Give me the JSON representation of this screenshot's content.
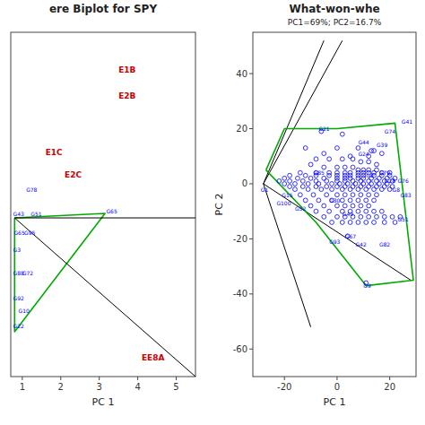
{
  "chart_data": [
    {
      "type": "biplot",
      "title": "ere Biplot for SPY",
      "xlabel": "PC 1",
      "xlim": [
        0.7,
        5.5
      ],
      "ylim": [
        -1.6,
        3.0
      ],
      "xticks": [
        1,
        2,
        3,
        4,
        5
      ],
      "tick_labels": "x",
      "series": [
        {
          "type": "line",
          "color": "#00aa00",
          "x": [
            0.8,
            3.15,
            0.8,
            0.8
          ],
          "values": [
            0.52,
            0.58,
            -1.0,
            0.52
          ]
        },
        {
          "type": "line",
          "color": "black",
          "x": [
            0.8,
            5.5
          ],
          "values": [
            0.52,
            0.52
          ]
        },
        {
          "type": "line",
          "color": "black",
          "x": [
            0.8,
            5.5
          ],
          "values": [
            0.52,
            -1.6
          ]
        }
      ],
      "annotations": [
        {
          "text": "E1B",
          "x": 3.5,
          "y": 2.5,
          "color": "#cc0000"
        },
        {
          "text": "E2B",
          "x": 3.5,
          "y": 2.15,
          "color": "#cc0000"
        },
        {
          "text": "E1C",
          "x": 1.6,
          "y": 1.4,
          "color": "#cc0000"
        },
        {
          "text": "E2C",
          "x": 2.1,
          "y": 1.1,
          "color": "#cc0000"
        },
        {
          "text": "EE8A",
          "x": 4.1,
          "y": -1.35,
          "color": "#cc0000"
        },
        {
          "text": "G65",
          "x": 3.18,
          "y": 0.61,
          "color": "blue"
        },
        {
          "text": "G78",
          "x": 1.1,
          "y": 0.9,
          "color": "blue"
        },
        {
          "text": "G43",
          "x": 0.76,
          "y": 0.58,
          "color": "blue"
        },
        {
          "text": "G51",
          "x": 1.22,
          "y": 0.58,
          "color": "blue"
        },
        {
          "text": "G65",
          "x": 0.78,
          "y": 0.32,
          "color": "blue"
        },
        {
          "text": "G95",
          "x": 1.05,
          "y": 0.32,
          "color": "blue"
        },
        {
          "text": "G3",
          "x": 0.76,
          "y": 0.1,
          "color": "blue"
        },
        {
          "text": "G72",
          "x": 1.0,
          "y": -0.22,
          "color": "blue"
        },
        {
          "text": "G88",
          "x": 0.76,
          "y": -0.22,
          "color": "blue"
        },
        {
          "text": "G92",
          "x": 0.76,
          "y": -0.55,
          "color": "blue"
        },
        {
          "text": "G10",
          "x": 0.9,
          "y": -0.72,
          "color": "blue"
        },
        {
          "text": "G22",
          "x": 0.76,
          "y": -0.92,
          "color": "blue"
        }
      ]
    },
    {
      "type": "biplot",
      "title": "What-won-whe",
      "subtitle": "PC1=69%; PC2=16.7%",
      "xlabel": "PC 1",
      "ylabel": "PC 2",
      "xlim": [
        -32,
        30
      ],
      "ylim": [
        -70,
        55
      ],
      "xticks": [
        -20,
        0,
        20
      ],
      "yticks": [
        -60,
        -40,
        -20,
        0,
        20,
        40
      ],
      "series": [
        {
          "type": "line",
          "color": "black",
          "x": [
            -28,
            -5
          ],
          "values": [
            0,
            52
          ]
        },
        {
          "type": "line",
          "color": "black",
          "x": [
            -28,
            2
          ],
          "values": [
            0,
            52
          ]
        },
        {
          "type": "line",
          "color": "black",
          "x": [
            -28,
            28
          ],
          "values": [
            0,
            -35
          ]
        },
        {
          "type": "line",
          "color": "black",
          "x": [
            -28,
            -10
          ],
          "values": [
            0,
            -52
          ]
        },
        {
          "type": "line",
          "color": "#00aa00",
          "x": [
            -27,
            -20,
            0,
            22,
            29,
            11,
            -8,
            -27
          ],
          "values": [
            5,
            20,
            20,
            22,
            -35,
            -37,
            -14,
            5
          ]
        },
        {
          "type": "scatter",
          "color": "blue",
          "marker": "circle",
          "x": [
            -6,
            2,
            -12,
            0,
            8,
            13,
            14,
            17,
            -5,
            5,
            12,
            -8,
            -3,
            2,
            6,
            9,
            12,
            15,
            -10,
            -5,
            0,
            3,
            6,
            8,
            10,
            12,
            15,
            -14,
            -8,
            -3,
            0,
            3,
            5,
            8,
            10,
            12,
            14,
            17,
            20,
            -18,
            -12,
            -8,
            -3,
            0,
            3,
            5,
            8,
            10,
            14,
            17,
            20,
            -20,
            -15,
            -10,
            -5,
            0,
            3,
            5,
            8,
            10,
            13,
            16,
            19,
            22,
            -22,
            -18,
            -13,
            -8,
            -4,
            0,
            3,
            6,
            9,
            12,
            15,
            18,
            21,
            -20,
            -16,
            -11,
            -7,
            -2,
            1,
            4,
            7,
            10,
            13,
            16,
            19,
            -18,
            -13,
            -8,
            -4,
            0,
            3,
            6,
            9,
            12,
            15,
            18,
            21,
            -16,
            -11,
            -6,
            -2,
            2,
            5,
            8,
            11,
            14,
            17,
            20,
            -14,
            -9,
            -4,
            0,
            3,
            6,
            9,
            12,
            15,
            -12,
            -7,
            -2,
            2,
            5,
            8,
            11,
            14,
            -10,
            -5,
            0,
            3,
            6,
            9,
            12,
            -8,
            -3,
            2,
            5,
            8,
            11,
            14,
            17,
            -5,
            0,
            3,
            6,
            9,
            12,
            15,
            18,
            21,
            24,
            -2,
            2,
            5,
            8,
            11,
            14,
            18,
            22,
            4,
            11
          ],
          "values": [
            19,
            18,
            13,
            13,
            13,
            12,
            12,
            11,
            11,
            10,
            10,
            9,
            9,
            9,
            9,
            8,
            8,
            7,
            7,
            6,
            6,
            6,
            6,
            5,
            5,
            5,
            5,
            4,
            4,
            4,
            4,
            4,
            4,
            4,
            4,
            4,
            4,
            4,
            4,
            3,
            3,
            3,
            3,
            3,
            3,
            3,
            3,
            3,
            3,
            3,
            3,
            2,
            2,
            2,
            2,
            2,
            2,
            2,
            2,
            2,
            2,
            2,
            2,
            2,
            1,
            1,
            1,
            1,
            1,
            1,
            1,
            1,
            1,
            1,
            1,
            1,
            1,
            0,
            0,
            0,
            0,
            0,
            0,
            0,
            0,
            0,
            0,
            0,
            0,
            -1,
            -1,
            -1,
            -1,
            -1,
            -1,
            -1,
            -1,
            -1,
            -1,
            -1,
            -1,
            -2,
            -2,
            -2,
            -2,
            -2,
            -2,
            -2,
            -2,
            -2,
            -2,
            -2,
            -4,
            -4,
            -4,
            -4,
            -4,
            -4,
            -4,
            -4,
            -4,
            -6,
            -6,
            -6,
            -6,
            -6,
            -6,
            -6,
            -6,
            -8,
            -8,
            -8,
            -8,
            -8,
            -8,
            -8,
            -10,
            -10,
            -10,
            -10,
            -10,
            -10,
            -10,
            -10,
            -12,
            -12,
            -12,
            -12,
            -12,
            -12,
            -12,
            -12,
            -12,
            -12,
            -14,
            -14,
            -14,
            -14,
            -14,
            -14,
            -14,
            -14,
            -19,
            -36
          ]
        }
      ],
      "annotations": [
        {
          "text": "G41",
          "x": 24.5,
          "y": 22.5,
          "color": "blue"
        },
        {
          "text": "G74",
          "x": 18,
          "y": 19,
          "color": "blue"
        },
        {
          "text": "G21",
          "x": -7,
          "y": 20,
          "color": "blue"
        },
        {
          "text": "G44",
          "x": 8,
          "y": 15,
          "color": "blue"
        },
        {
          "text": "G39",
          "x": 15,
          "y": 14,
          "color": "blue"
        },
        {
          "text": "G24",
          "x": 8,
          "y": 11,
          "color": "blue"
        },
        {
          "text": "G79",
          "x": 16,
          "y": 4,
          "color": "blue"
        },
        {
          "text": "G28",
          "x": 18,
          "y": 1,
          "color": "blue"
        },
        {
          "text": "G76",
          "x": 23,
          "y": 1,
          "color": "blue"
        },
        {
          "text": "G8",
          "x": 21,
          "y": -2,
          "color": "blue"
        },
        {
          "text": "G83",
          "x": 24,
          "y": -4,
          "color": "blue"
        },
        {
          "text": "G5",
          "x": 11,
          "y": 3,
          "color": "blue"
        },
        {
          "text": "G85",
          "x": -9,
          "y": 4,
          "color": "blue"
        },
        {
          "text": "G30",
          "x": -3,
          "y": -6,
          "color": "blue"
        },
        {
          "text": "G49",
          "x": 2,
          "y": -11,
          "color": "blue"
        },
        {
          "text": "G67",
          "x": 3,
          "y": -19,
          "color": "blue"
        },
        {
          "text": "G42",
          "x": 7,
          "y": -22,
          "color": "blue"
        },
        {
          "text": "G82",
          "x": 16,
          "y": -22,
          "color": "blue"
        },
        {
          "text": "G51",
          "x": 23,
          "y": -13,
          "color": "blue"
        },
        {
          "text": "G9",
          "x": 10,
          "y": -37,
          "color": "blue"
        },
        {
          "text": "G93",
          "x": -3,
          "y": -21,
          "color": "blue"
        },
        {
          "text": "G52",
          "x": -16,
          "y": -9,
          "color": "blue"
        },
        {
          "text": "G15",
          "x": -21,
          "y": -4,
          "color": "blue"
        },
        {
          "text": "G100",
          "x": -23,
          "y": -7,
          "color": "blue"
        },
        {
          "text": "G1",
          "x": -29,
          "y": -2,
          "color": "blue"
        }
      ]
    }
  ]
}
